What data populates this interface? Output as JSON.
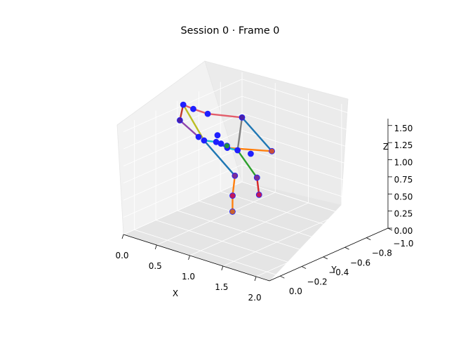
{
  "chart_data": {
    "type": "scatter",
    "title": "Session 0 · Frame 0",
    "xlabel": "X",
    "ylabel": "Y",
    "zlabel": "Z",
    "xlim": [
      0,
      2.2
    ],
    "ylim": [
      -1.0,
      0.1
    ],
    "zlim": [
      0,
      1.6
    ],
    "x_ticks": [
      "0.0",
      "0.5",
      "1.0",
      "1.5",
      "2.0"
    ],
    "y_ticks": [
      "0.0",
      "−0.2",
      "−0.4",
      "−0.6",
      "−0.8",
      "−1.0"
    ],
    "z_ticks": [
      "0.00",
      "0.25",
      "0.50",
      "0.75",
      "1.00",
      "1.25",
      "1.50"
    ],
    "grid": true,
    "series": [
      {
        "kind": "joints",
        "points": [
          {
            "x": 0.3,
            "y": -0.27,
            "z": 1.73,
            "color": "#1f1fff"
          },
          {
            "x": 0.5,
            "y": -0.24,
            "z": 1.75,
            "color": "#1f1fff"
          },
          {
            "x": 0.75,
            "y": -0.22,
            "z": 1.77,
            "color": "#1f1fff"
          },
          {
            "x": 1.3,
            "y": -0.2,
            "z": 1.9,
            "color": "#4b1fa8"
          },
          {
            "x": 0.2,
            "y": -0.3,
            "z": 1.45,
            "color": "#4b1fa8"
          },
          {
            "x": 0.8,
            "y": -0.28,
            "z": 1.43,
            "color": "#1f1fff"
          },
          {
            "x": 0.82,
            "y": -0.3,
            "z": 1.3,
            "color": "#1f1fff"
          },
          {
            "x": 0.45,
            "y": -0.32,
            "z": 1.27,
            "color": "#1f1fff"
          },
          {
            "x": 0.5,
            "y": -0.34,
            "z": 1.22,
            "color": "#1f1fff"
          },
          {
            "x": 0.65,
            "y": -0.36,
            "z": 1.23,
            "color": "#1f1fff"
          },
          {
            "x": 0.85,
            "y": -0.34,
            "z": 1.22,
            "color": "#1f1fff"
          },
          {
            "x": 0.78,
            "y": -0.38,
            "z": 1.2,
            "color": "#1f8f3f"
          },
          {
            "x": 1.07,
            "y": -0.3,
            "z": 1.28,
            "color": "#1f1fff"
          },
          {
            "x": 1.35,
            "y": -0.25,
            "z": 1.35,
            "color": "#1f1fff"
          },
          {
            "x": 1.62,
            "y": -0.28,
            "z": 1.45,
            "color": "#c94f3a"
          },
          {
            "x": 0.9,
            "y": -0.38,
            "z": 0.8,
            "color": "#7a2f9a"
          },
          {
            "x": 1.2,
            "y": -0.4,
            "z": 0.85,
            "color": "#7a2f9a"
          },
          {
            "x": 0.8,
            "y": -0.42,
            "z": 0.45,
            "color": "#c2185b"
          },
          {
            "x": 1.15,
            "y": -0.45,
            "z": 0.55,
            "color": "#c2185b"
          },
          {
            "x": 0.75,
            "y": -0.45,
            "z": 0.18,
            "color": "#c9632f"
          }
        ]
      }
    ],
    "bones": [
      {
        "a": 0,
        "b": 1,
        "color": "#e35d6a"
      },
      {
        "a": 1,
        "b": 2,
        "color": "#e35d6a"
      },
      {
        "a": 2,
        "b": 3,
        "color": "#e35d6a"
      },
      {
        "a": 0,
        "b": 4,
        "color": "#c0392b"
      },
      {
        "a": 4,
        "b": 7,
        "color": "#8e44ad"
      },
      {
        "a": 0,
        "b": 8,
        "color": "#bcbd22"
      },
      {
        "a": 3,
        "b": 12,
        "color": "#7f7f7f"
      },
      {
        "a": 3,
        "b": 14,
        "color": "#1f77b4"
      },
      {
        "a": 14,
        "b": 10,
        "color": "#ff7f0e"
      },
      {
        "a": 8,
        "b": 9,
        "color": "#17becf"
      },
      {
        "a": 9,
        "b": 10,
        "color": "#1f77b4"
      },
      {
        "a": 10,
        "b": 12,
        "color": "#17becf"
      },
      {
        "a": 12,
        "b": 16,
        "color": "#2ca02c"
      },
      {
        "a": 16,
        "b": 18,
        "color": "#d62728"
      },
      {
        "a": 8,
        "b": 15,
        "color": "#1f77b4"
      },
      {
        "a": 15,
        "b": 17,
        "color": "#ff7f0e"
      },
      {
        "a": 17,
        "b": 19,
        "color": "#ff7f0e"
      }
    ]
  }
}
